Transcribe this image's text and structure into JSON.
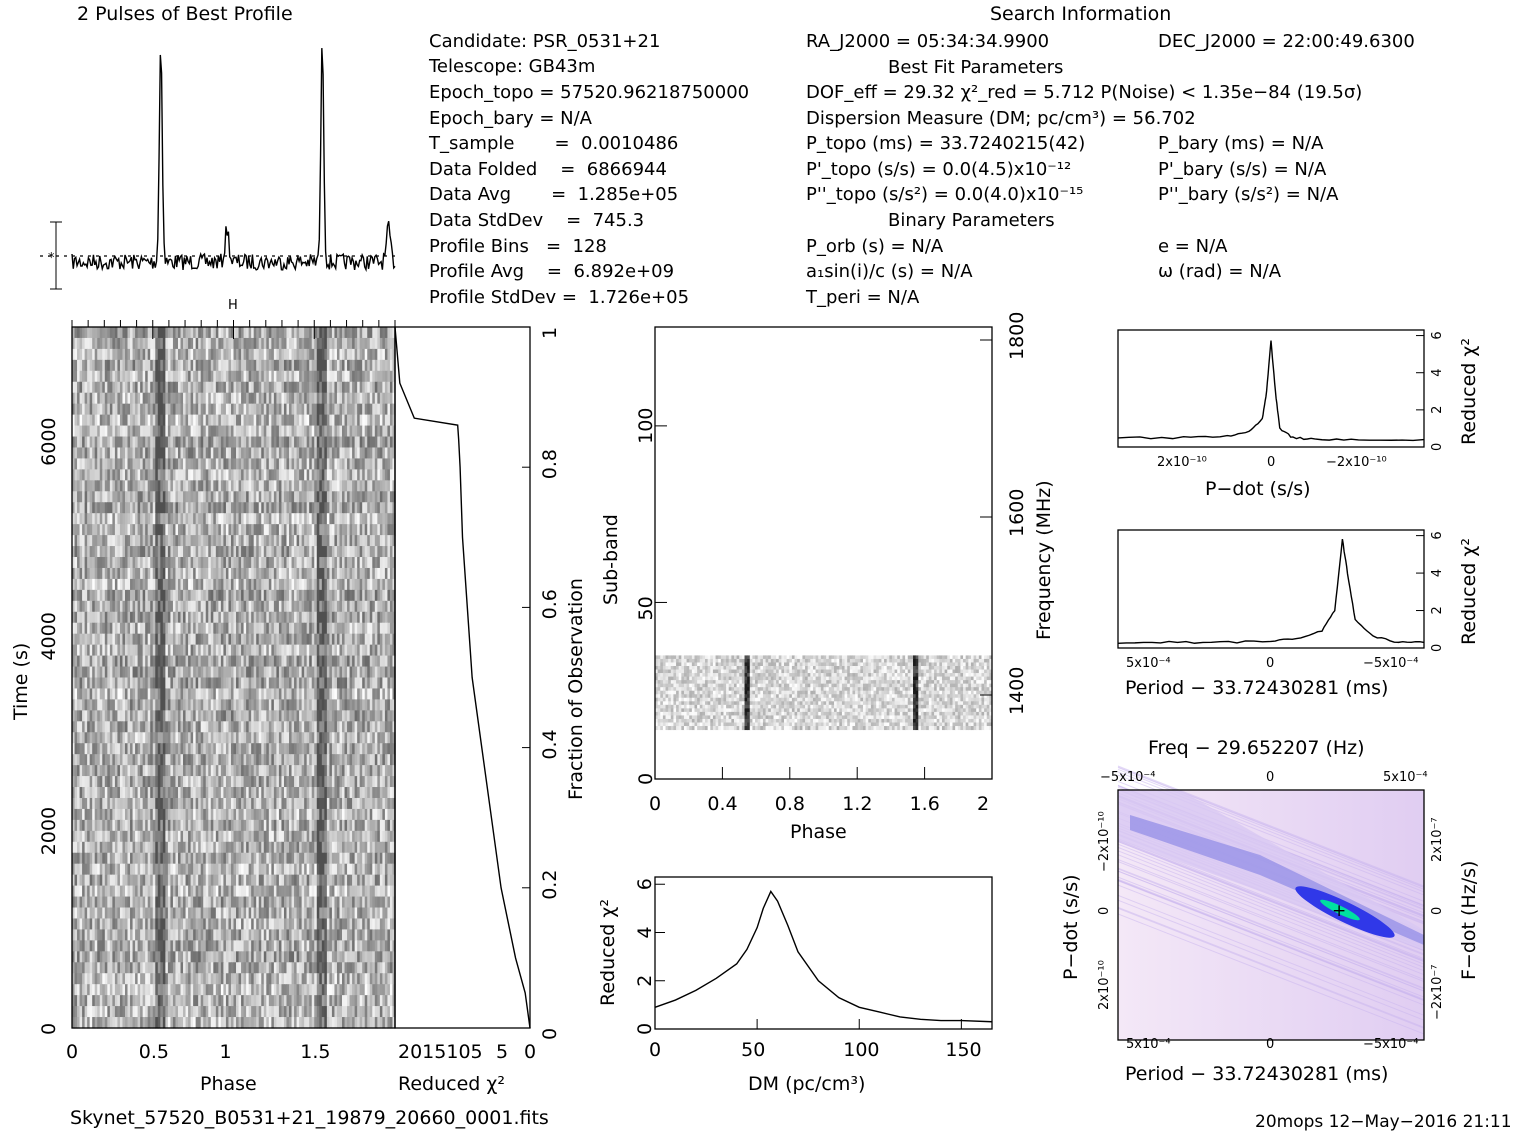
{
  "header": {
    "profile_title": "2 Pulses of Best Profile",
    "search_title": "Search Information",
    "best_fit_title": "Best Fit Parameters",
    "binary_title": "Binary Parameters"
  },
  "info": {
    "candidate": "Candidate:  PSR_0531+21",
    "telescope": "Telescope:  GB43m",
    "epoch_topo": "Epoch_topo = 57520.96218750000",
    "epoch_bary": "Epoch_bary = N/A",
    "t_sample": "T_sample       =  0.0010486",
    "data_folded": "Data Folded    =  6866944",
    "data_avg": "Data Avg       =  1.285e+05",
    "data_stddev": "Data StdDev    =  745.3",
    "profile_bins": "Profile Bins   =  128",
    "profile_avg": "Profile Avg    =  6.892e+09",
    "profile_stddev": "Profile StdDev =  1.726e+05",
    "ra": "RA_J2000 = 05:34:34.9900",
    "dec": "DEC_J2000 = 22:00:49.6300",
    "dof": "DOF_eff = 29.32  χ²_red = 5.712  P(Noise) < 1.35e−84  (19.5σ)",
    "dm": "Dispersion Measure (DM; pc/cm³) = 56.702",
    "p_topo": "P_topo (ms) =  33.7240215(42)",
    "p_bary": "P_bary (ms) = N/A",
    "pd_topo": "P'_topo (s/s) = 0.0(4.5)x10⁻¹²",
    "pd_bary": "P'_bary (s/s) = N/A",
    "pdd_topo": "P''_topo (s/s²) = 0.0(4.0)x10⁻¹⁵",
    "pdd_bary": "P''_bary (s/s²) = N/A",
    "p_orb": "P_orb (s) = N/A",
    "a1sini": "a₁sin(i)/c (s) = N/A",
    "t_peri": "T_peri = N/A",
    "e": "e = N/A",
    "omega": "ω (rad) = N/A"
  },
  "footer": {
    "filename": "Skynet_57520_B0531+21_19879_20660_0001.fits",
    "stamp": "20mops 12−May−2016 21:11"
  },
  "chart_data": [
    {
      "type": "line",
      "name": "profile",
      "title": "2 Pulses of Best Profile",
      "x_range": [
        0,
        2
      ],
      "peaks_phase": [
        0.55,
        0.96,
        1.55,
        1.96
      ],
      "peak_heights_rel": [
        1.0,
        0.15,
        1.0,
        0.15
      ]
    },
    {
      "type": "heatmap",
      "name": "time-phase",
      "xlabel": "Phase",
      "ylabel": "Time (s)",
      "x_range": [
        0,
        2
      ],
      "y_range": [
        0,
        7200
      ],
      "xticks": [
        "0",
        "0.5",
        "1",
        "1.5"
      ],
      "yticks": [
        "0",
        "2000",
        "4000",
        "6000"
      ]
    },
    {
      "type": "line",
      "name": "reduced-chi2-vs-time",
      "xlabel": "Reduced χ²",
      "ylabel": "Fraction of Observation",
      "xticks": [
        "2015105",
        "5",
        "0"
      ],
      "yticks": [
        "0",
        "0.2",
        "0.4",
        "0.6",
        "0.8",
        "1"
      ],
      "x": [
        0,
        1,
        3,
        6,
        8,
        10,
        12,
        13,
        14,
        14.5,
        14.8,
        15,
        24,
        27,
        28
      ],
      "y": [
        0,
        0.05,
        0.1,
        0.2,
        0.3,
        0.4,
        0.5,
        0.6,
        0.7,
        0.8,
        0.84,
        0.86,
        0.87,
        0.92,
        1.0
      ]
    },
    {
      "type": "heatmap",
      "name": "subband-phase",
      "xlabel": "Phase",
      "ylabel": "Sub-band",
      "y2label": "Frequency (MHz)",
      "x_range": [
        0,
        2
      ],
      "y_range": [
        0,
        128
      ],
      "xticks": [
        "0",
        "0.4",
        "0.8",
        "1.2",
        "1.6",
        "2"
      ],
      "yticks": [
        "0",
        "50",
        "100"
      ],
      "y2ticks": [
        "1400",
        "1600",
        "1800"
      ],
      "data_band": [
        14,
        35
      ]
    },
    {
      "type": "line",
      "name": "dm-curve",
      "xlabel": "DM (pc/cm³)",
      "ylabel": "Reduced χ²",
      "x_range": [
        0,
        165
      ],
      "y_range": [
        0,
        6.3
      ],
      "xticks": [
        "0",
        "50",
        "100",
        "150"
      ],
      "yticks": [
        "0",
        "2",
        "4",
        "6"
      ],
      "x": [
        0,
        10,
        20,
        30,
        40,
        45,
        50,
        53,
        56.7,
        60,
        65,
        70,
        80,
        90,
        100,
        110,
        120,
        130,
        140,
        150,
        165
      ],
      "y": [
        0.9,
        1.2,
        1.6,
        2.1,
        2.7,
        3.3,
        4.2,
        5.0,
        5.7,
        5.3,
        4.3,
        3.2,
        2.0,
        1.3,
        0.9,
        0.7,
        0.5,
        0.4,
        0.35,
        0.35,
        0.3
      ]
    },
    {
      "type": "line",
      "name": "pdot-curve",
      "xlabel": "P−dot (s/s)",
      "ylabel": "Reduced χ²",
      "xticks": [
        "2x10⁻¹⁰",
        "0",
        "−2x10⁻¹⁰"
      ],
      "yticks": [
        "0",
        "2",
        "4",
        "6"
      ],
      "x": [
        3.5e-10,
        2e-10,
        1e-10,
        5e-11,
        2e-11,
        1e-11,
        0,
        -1e-11,
        -2e-11,
        -5e-11,
        -1e-10,
        -2e-10,
        -3.5e-10
      ],
      "y": [
        0.5,
        0.5,
        0.6,
        0.8,
        1.5,
        3.0,
        5.7,
        3.0,
        1.0,
        0.5,
        0.4,
        0.4,
        0.4
      ]
    },
    {
      "type": "line",
      "name": "period-curve",
      "xlabel": "Period − 33.72430281 (ms)",
      "ylabel": "Reduced χ²",
      "xticks": [
        "5x10⁻⁴",
        "0",
        "−5x10⁻⁴"
      ],
      "yticks": [
        "0",
        "2",
        "4",
        "6"
      ],
      "x": [
        0.0006,
        0.0004,
        0.0002,
        0,
        -0.0001,
        -0.0002,
        -0.00025,
        -0.00028,
        -0.0003,
        -0.00033,
        -0.0004,
        -0.0005,
        -0.0006
      ],
      "y": [
        0.3,
        0.3,
        0.3,
        0.35,
        0.5,
        0.9,
        2.0,
        5.8,
        4.0,
        1.5,
        0.6,
        0.3,
        0.3
      ]
    },
    {
      "type": "heatmap",
      "name": "period-pdot",
      "title": "Freq − 29.652207 (Hz)",
      "xlabel": "Period − 33.72430281 (ms)",
      "ylabel": "P−dot (s/s)",
      "y2label": "F−dot (Hz/s)",
      "xticks": [
        "5x10⁻⁴",
        "0",
        "−5x10⁻⁴"
      ],
      "x2ticks": [
        "−5x10⁻⁴",
        "0",
        "5x10⁻⁴"
      ],
      "yticks": [
        "−2x10⁻¹⁰",
        "0",
        "2x10⁻¹⁰"
      ],
      "y2ticks": [
        "2x10⁻⁷",
        "0",
        "−2x10⁻⁷"
      ],
      "colors": [
        "#f3e6f6",
        "#c9b5ef",
        "#3038e8",
        "#00e0a0"
      ]
    }
  ]
}
